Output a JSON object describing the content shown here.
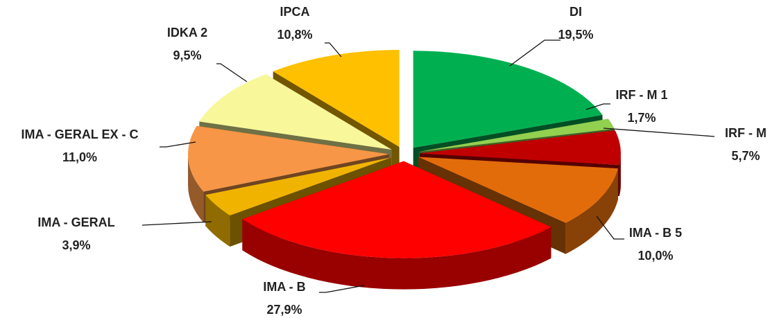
{
  "chart_data": {
    "type": "pie",
    "categories": [
      "DI",
      "IRF - M 1",
      "IRF - M",
      "IMA - B 5",
      "IMA - B",
      "IMA - GERAL",
      "IMA - GERAL EX - C",
      "IDKA 2",
      "IPCA"
    ],
    "values": [
      19.5,
      1.7,
      5.7,
      10.0,
      27.9,
      3.9,
      11.0,
      9.5,
      10.8
    ],
    "value_labels": [
      "19,5%",
      "1,7%",
      "5,7%",
      "10,0%",
      "27,9%",
      "3,9%",
      "11,0%",
      "9,5%",
      "10,8%"
    ],
    "colors": [
      "#00b050",
      "#92d050",
      "#c00000",
      "#e36c0a",
      "#ff0000",
      "#f0b400",
      "#f79646",
      "#f8f89a",
      "#ffc000"
    ]
  }
}
